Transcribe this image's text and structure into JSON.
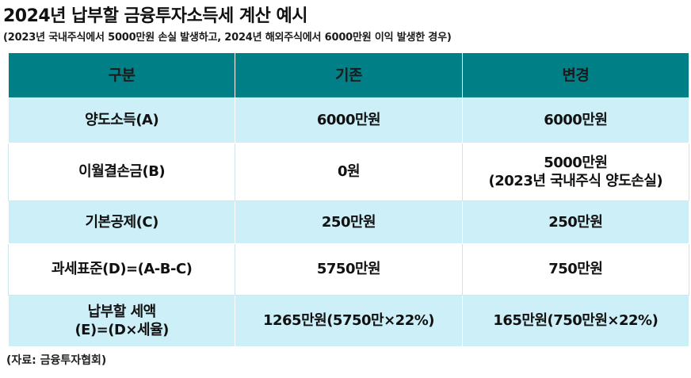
{
  "title": "2024년 납부할 금융투자소득세 계산 예시",
  "subtitle": "(2023년 국내주식에서 5000만원 손실 발생하고, 2024년 해외주식에서 6000만원 이익 발생한 경우)",
  "table": {
    "headers": [
      "구분",
      "기존",
      "변경"
    ],
    "rows": [
      {
        "label": "양도소득(A)",
        "before": "6000만원",
        "after_line1": "6000만원",
        "after_line2": ""
      },
      {
        "label": "이월결손금(B)",
        "before": "0원",
        "after_line1": "5000만원",
        "after_line2": "(2023년 국내주식 양도손실)"
      },
      {
        "label": "기본공제(C)",
        "before": "250만원",
        "after_line1": "250만원",
        "after_line2": ""
      },
      {
        "label": "과세표준(D)=(A-B-C)",
        "before": "5750만원",
        "after_line1": "750만원",
        "after_line2": ""
      },
      {
        "label_line1": "납부할 세액",
        "label_line2": "(E)=(D×세율)",
        "before": "1265만원(5750만×22%)",
        "after_line1": "165만원(750만원×22%)",
        "after_line2": ""
      }
    ]
  },
  "source": "(자료: 금융투자협회)",
  "colors": {
    "header_bg": "#007f86",
    "shaded_row_bg": "#cdeff7",
    "plain_row_bg": "#ffffff"
  }
}
